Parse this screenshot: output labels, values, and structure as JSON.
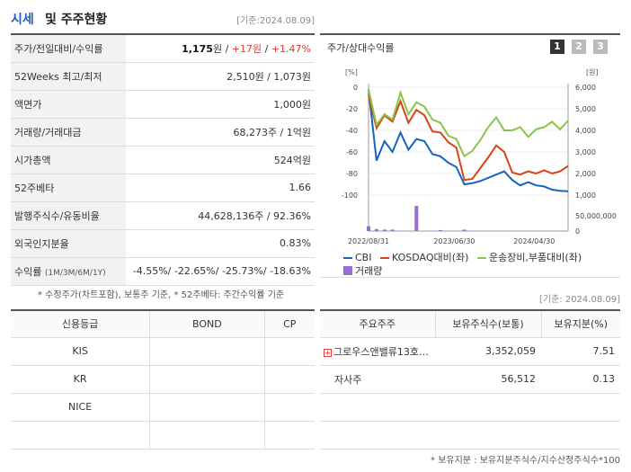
{
  "header": {
    "title_main": "시세",
    "title_sub": "및 주주현황",
    "date": "[기준:2024.08.09]"
  },
  "quote": {
    "rows": [
      {
        "label": "주가/전일대비/수익률",
        "price": "1,175",
        "unit": "원",
        "sep1": " / ",
        "change": "+17원",
        "sep2": " / ",
        "pct": "+1.47%"
      },
      {
        "label": "52Weeks 최고/최저",
        "value": "2,510원 / 1,073원"
      },
      {
        "label": "액면가",
        "value": "1,000원"
      },
      {
        "label": "거래량/거래대금",
        "value": "68,273주 / 1억원"
      },
      {
        "label": "시가총액",
        "value": "524억원"
      },
      {
        "label": "52주베타",
        "value": "1.66"
      },
      {
        "label": "발행주식수/유동비율",
        "value": "44,628,136주 / 92.36%"
      },
      {
        "label": "외국인지분율",
        "value": "0.83%"
      },
      {
        "label": "수익률",
        "label_sub": "(1M/3M/6M/1Y)",
        "value": "-4.55%/ -22.65%/ -25.73%/ -18.63%"
      }
    ],
    "note": "* 수정주가(차트포함), 보통주 기준, * 52주베타: 주간수익률 기준"
  },
  "chart": {
    "title": "주가/상대수익률",
    "pages": [
      "1",
      "2",
      "3"
    ],
    "left_unit": "[%]",
    "right_unit": "[원]",
    "left_ticks": [
      "0",
      "-20",
      "-40",
      "-60",
      "-80",
      "-100"
    ],
    "right_ticks": [
      "6,000",
      "5,000",
      "4,000",
      "3,000",
      "2,000",
      "1,000"
    ],
    "vol_tick": "50,000,000",
    "vol_zero": "0",
    "x_ticks": [
      "2022/08/31",
      "2023/06/30",
      "2024/04/30"
    ],
    "legend": [
      "CBI",
      "KOSDAQ대비(좌)",
      "운송장비,부품대비(좌)",
      "거래량"
    ],
    "colors": {
      "CBI": "#1565c0",
      "KOSDAQ": "#d84315",
      "sector": "#8bc34a",
      "volume": "#9b6bd6"
    }
  },
  "chart_data": {
    "type": "line",
    "xlabel": "",
    "ylabel": "",
    "x_ticks": [
      "2022/08/31",
      "2023/06/30",
      "2024/04/30"
    ],
    "left_ylim": [
      -100,
      0
    ],
    "right_ylim": [
      1000,
      6000
    ],
    "series": [
      {
        "name": "CBI",
        "axis": "right",
        "values": [
          5900,
          2600,
          3500,
          3000,
          3900,
          3100,
          3600,
          3500,
          2900,
          2800,
          2500,
          2300,
          1500,
          1550,
          1650,
          1800,
          1950,
          2100,
          1700,
          1450,
          1600,
          1450,
          1400,
          1250,
          1200,
          1175
        ]
      },
      {
        "name": "KOSDAQ대비(좌)",
        "axis": "left",
        "values": [
          -7,
          -38,
          -26,
          -32,
          -13,
          -33,
          -21,
          -26,
          -41,
          -42,
          -51,
          -56,
          -86,
          -85,
          -75,
          -65,
          -54,
          -60,
          -79,
          -81,
          -78,
          -80,
          -77,
          -80,
          -78,
          -73
        ]
      },
      {
        "name": "운송장비,부품대비(좌)",
        "axis": "left",
        "values": [
          -2,
          -35,
          -25,
          -30,
          -5,
          -25,
          -14,
          -18,
          -30,
          -33,
          -45,
          -48,
          -64,
          -59,
          -49,
          -37,
          -28,
          -40,
          -40,
          -37,
          -46,
          -39,
          -37,
          -32,
          -39,
          -31
        ]
      },
      {
        "name": "거래량",
        "axis": "volume",
        "values": [
          5,
          2,
          1.5,
          1.5,
          0,
          0,
          26,
          0,
          0,
          1,
          0,
          0,
          1.5,
          0,
          0,
          0,
          0,
          0,
          0,
          0,
          0,
          0,
          0,
          0,
          0,
          0
        ]
      }
    ]
  },
  "credit": {
    "headers": [
      "신용등급",
      "BOND",
      "CP"
    ],
    "rows": [
      [
        "KIS",
        "",
        ""
      ],
      [
        "KR",
        "",
        ""
      ],
      [
        "NICE",
        "",
        ""
      ],
      [
        "",
        "",
        ""
      ]
    ]
  },
  "holders": {
    "date": "[기준: 2024.08.09]",
    "headers": [
      "주요주주",
      "보유주식수(보통)",
      "보유지분(%)"
    ],
    "rows": [
      {
        "name": "그로우스앤밸류13호투…",
        "shares": "3,352,059",
        "pct": "7.51",
        "expand": "+"
      },
      {
        "name": "자사주",
        "shares": "56,512",
        "pct": "0.13"
      },
      {
        "name": "",
        "shares": "",
        "pct": ""
      },
      {
        "name": "",
        "shares": "",
        "pct": ""
      },
      {
        "name": "",
        "shares": "",
        "pct": ""
      }
    ],
    "note": "* 보유지분 : 보유지분주식수/지수산정주식수*100"
  }
}
